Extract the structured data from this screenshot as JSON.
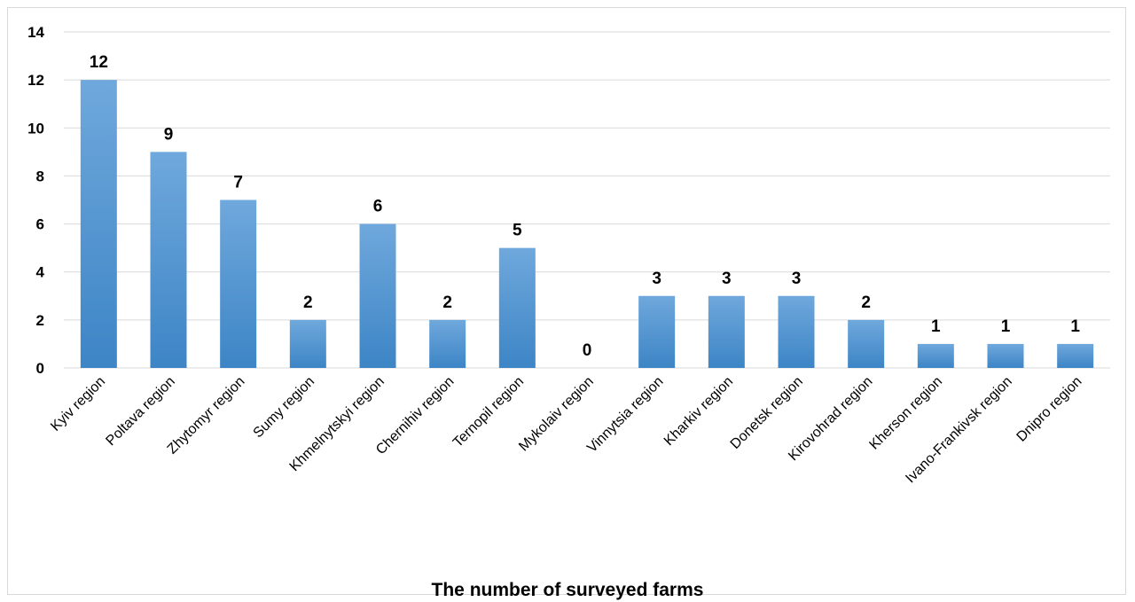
{
  "chart_data": {
    "type": "bar",
    "title": "",
    "xlabel": "The number of surveyed farms",
    "ylabel": "",
    "ylim": [
      0,
      14
    ],
    "yticks": [
      0,
      2,
      4,
      6,
      8,
      10,
      12,
      14
    ],
    "grid": true,
    "legend": "none",
    "categories": [
      "Kyiv region",
      "Poltava region",
      "Zhytomyr region",
      "Sumy region",
      "Khmelnytskyi region",
      "Chernihiv region",
      "Ternopil region",
      "Mykolaiv region",
      "Vinnytsia region",
      "Kharkiv region",
      "Donetsk region",
      "Kirovohrad region",
      "Kherson region",
      "Ivano-Frankivsk region",
      "Dnipro region"
    ],
    "values": [
      12,
      9,
      7,
      2,
      6,
      2,
      5,
      0,
      3,
      3,
      3,
      2,
      1,
      1,
      1
    ],
    "colors": {
      "bar_top": "#6fa8dc",
      "bar_bottom": "#3d85c6",
      "grid": "#d9d9d9"
    }
  }
}
